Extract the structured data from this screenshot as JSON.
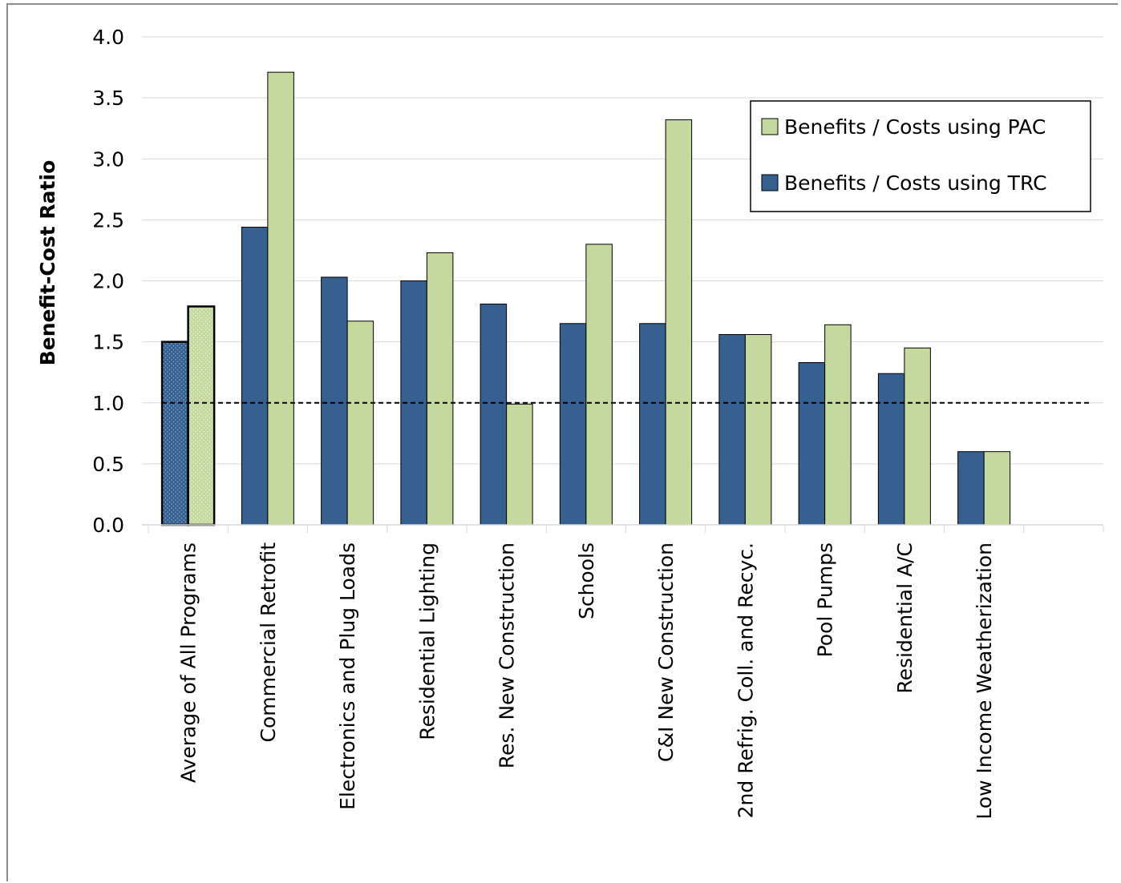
{
  "chart_data": {
    "type": "bar",
    "ylabel": "Benefit-Cost  Ratio",
    "ylim": [
      0,
      4.0
    ],
    "yticks": [
      "0.0",
      "0.5",
      "1.0",
      "1.5",
      "2.0",
      "2.5",
      "3.0",
      "3.5",
      "4.0"
    ],
    "grid": true,
    "reference_line": {
      "value": 1.0,
      "style": "dashed",
      "color": "#000000"
    },
    "legend_position": "top-right",
    "categories": [
      "Average of All Programs",
      "Commercial Retrofit",
      "Electronics and Plug Loads",
      "Residential Lighting",
      "Res. New Construction",
      "Schools",
      "C&I New Construction",
      "2nd Refrig. Coll. and Recyc.",
      "Pool Pumps",
      "Residential A/C",
      "Low Income Weatherization",
      ""
    ],
    "series": [
      {
        "name": "Benefits / Costs using TRC",
        "color": "#36608f",
        "values": [
          1.5,
          2.44,
          2.03,
          2.0,
          1.81,
          1.65,
          1.65,
          1.56,
          1.33,
          1.24,
          0.6,
          null
        ]
      },
      {
        "name": "Benefits / Costs using PAC",
        "color": "#c5d89e",
        "values": [
          1.79,
          3.71,
          1.67,
          2.23,
          0.99,
          2.3,
          3.32,
          1.56,
          1.64,
          1.45,
          0.6,
          null
        ]
      }
    ],
    "legend": [
      {
        "label": "Benefits / Costs using PAC",
        "color": "#c5d89e"
      },
      {
        "label": "Benefits / Costs using TRC",
        "color": "#36608f"
      }
    ],
    "highlighted_category_index": 0
  }
}
